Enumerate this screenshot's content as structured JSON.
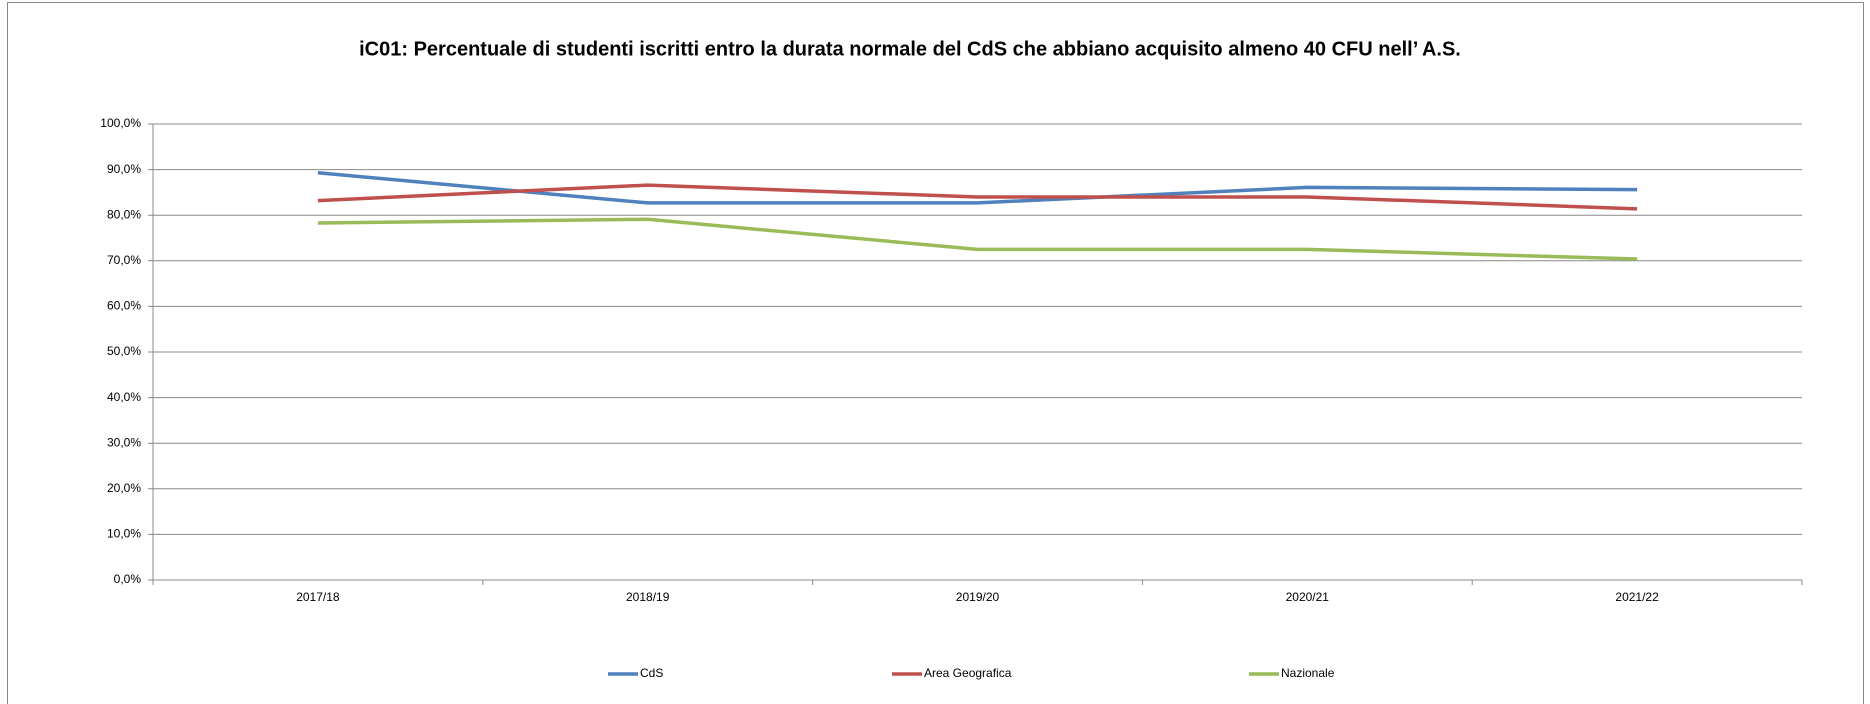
{
  "chart_data": {
    "type": "line",
    "title": "iC01: Percentuale di studenti iscritti entro la durata normale del CdS che abbiano acquisito almeno 40 CFU nell’ A.S.",
    "categories": [
      "2017/18",
      "2018/19",
      "2019/20",
      "2020/21",
      "2021/22"
    ],
    "series": [
      {
        "name": "CdS",
        "color": "#4f81bd",
        "values": [
          89.3,
          82.7,
          82.7,
          86.1,
          85.6
        ]
      },
      {
        "name": "Area Geografica",
        "color": "#c0504d",
        "values": [
          83.2,
          86.6,
          84.0,
          84.0,
          81.4
        ]
      },
      {
        "name": "Nazionale",
        "color": "#9bbb59",
        "values": [
          78.3,
          79.1,
          72.5,
          72.5,
          70.4
        ]
      }
    ],
    "ylim": [
      0,
      100
    ],
    "yticks": [
      {
        "value": 0,
        "label": "0,0%"
      },
      {
        "value": 10,
        "label": "10,0%"
      },
      {
        "value": 20,
        "label": "20,0%"
      },
      {
        "value": 30,
        "label": "30,0%"
      },
      {
        "value": 40,
        "label": "40,0%"
      },
      {
        "value": 50,
        "label": "50,0%"
      },
      {
        "value": 60,
        "label": "60,0%"
      },
      {
        "value": 70,
        "label": "70,0%"
      },
      {
        "value": 80,
        "label": "80,0%"
      },
      {
        "value": 90,
        "label": "90,0%"
      },
      {
        "value": 100,
        "label": "100,0%"
      }
    ],
    "grid": true,
    "legend": "bottom"
  }
}
